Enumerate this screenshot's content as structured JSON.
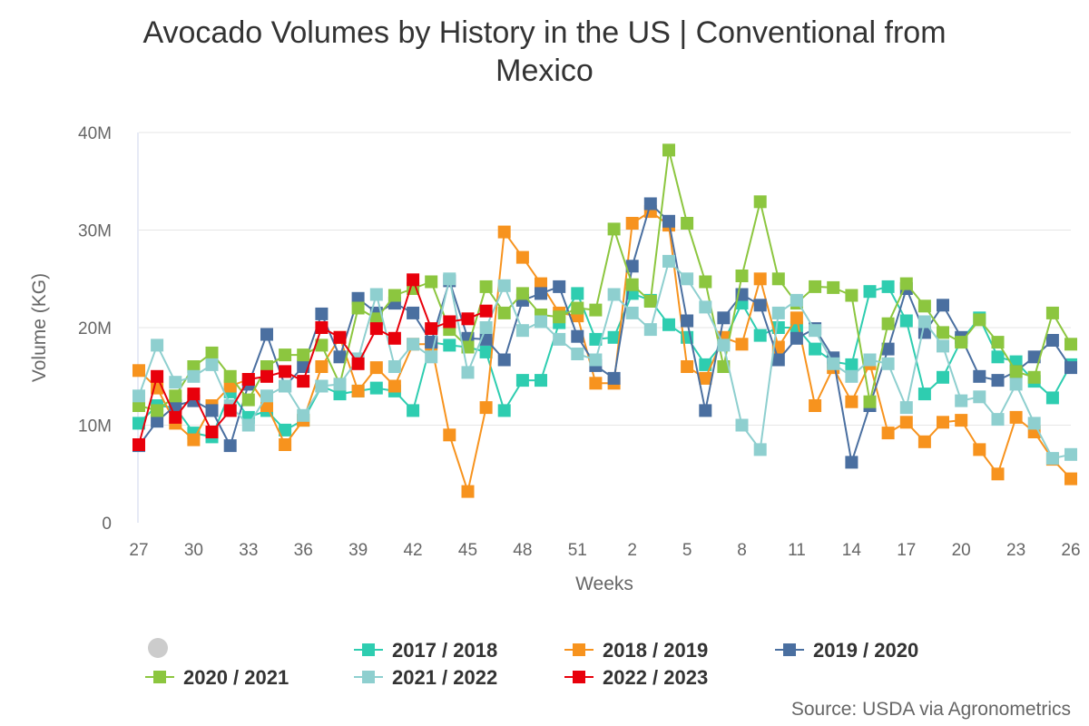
{
  "chart_data": {
    "type": "line",
    "title_line1": "Avocado Volumes by History in the US | Conventional from",
    "title_line2": "Mexico",
    "xlabel": "Weeks",
    "ylabel": "Volume (KG)",
    "ylim": [
      0,
      40000000
    ],
    "yticks": [
      {
        "value": 0,
        "label": "0"
      },
      {
        "value": 10000000,
        "label": "10M"
      },
      {
        "value": 20000000,
        "label": "20M"
      },
      {
        "value": 30000000,
        "label": "30M"
      },
      {
        "value": 40000000,
        "label": "40M"
      }
    ],
    "categories": [
      "27",
      "28",
      "29",
      "30",
      "31",
      "32",
      "33",
      "34",
      "35",
      "36",
      "37",
      "38",
      "39",
      "40",
      "41",
      "42",
      "43",
      "44",
      "45",
      "46",
      "47",
      "48",
      "49",
      "50",
      "51",
      "52",
      "1",
      "2",
      "3",
      "4",
      "5",
      "6",
      "7",
      "8",
      "9",
      "10",
      "11",
      "12",
      "13",
      "14",
      "15",
      "16",
      "17",
      "18",
      "19",
      "20",
      "21",
      "22",
      "23",
      "24",
      "25",
      "26"
    ],
    "xticks": [
      "27",
      "30",
      "33",
      "36",
      "39",
      "42",
      "45",
      "48",
      "51",
      "2",
      "5",
      "8",
      "11",
      "14",
      "17",
      "20",
      "23",
      "26"
    ],
    "series": [
      {
        "name": "2017 / 2018",
        "color": "#2ecdb0",
        "values": [
          10.2,
          12.0,
          11.8,
          9.2,
          8.8,
          13.4,
          10.8,
          11.5,
          9.5,
          10.5,
          14.0,
          13.2,
          13.5,
          13.8,
          13.5,
          11.5,
          18.5,
          18.2,
          18.0,
          17.5,
          11.5,
          14.6,
          14.6,
          20.5,
          23.5,
          18.8,
          19.0,
          23.5,
          22.8,
          20.3,
          19.0,
          16.2,
          18.5,
          22.5,
          19.2,
          20.0,
          20.0,
          17.8,
          16.5,
          16.2,
          23.7,
          24.2,
          20.7,
          13.2,
          14.9,
          18.7,
          21.0,
          17.0,
          16.5,
          14.5,
          12.8,
          16.2
        ]
      },
      {
        "name": "2018 / 2019",
        "color": "#f7931e",
        "values": [
          15.6,
          13.8,
          10.2,
          8.5,
          12.0,
          14.0,
          14.7,
          12.0,
          8.0,
          10.5,
          16.0,
          19.0,
          13.5,
          15.9,
          14.0,
          18.3,
          18.3,
          9.0,
          3.2,
          11.8,
          29.8,
          27.2,
          24.5,
          21.5,
          21.2,
          14.3,
          14.3,
          30.7,
          31.9,
          30.5,
          16.0,
          14.8,
          19.0,
          18.3,
          25.0,
          18.0,
          21.0,
          12.0,
          15.9,
          12.4,
          16.3,
          9.2,
          10.3,
          8.3,
          10.3,
          10.5,
          7.5,
          5.0,
          10.8,
          9.3,
          6.5,
          4.5
        ]
      },
      {
        "name": "2019 / 2020",
        "color": "#4a6fa0",
        "values": [
          7.9,
          10.4,
          12.0,
          12.5,
          11.5,
          7.9,
          14.2,
          19.3,
          14.0,
          16.0,
          21.4,
          17.0,
          23.0,
          21.5,
          22.5,
          21.5,
          18.5,
          24.8,
          18.9,
          18.8,
          16.7,
          22.8,
          23.5,
          24.2,
          19.1,
          16.1,
          14.8,
          26.3,
          32.7,
          30.9,
          20.7,
          11.5,
          21.0,
          23.4,
          22.3,
          16.7,
          18.9,
          19.9,
          16.9,
          6.2,
          12.0,
          17.8,
          24.0,
          19.5,
          22.3,
          19.0,
          15.0,
          14.6,
          15.5,
          17.0,
          18.7,
          15.9
        ]
      },
      {
        "name": "2020 / 2021",
        "color": "#8cc63f",
        "values": [
          12.0,
          11.5,
          13.0,
          16.0,
          17.4,
          15.0,
          12.6,
          16.0,
          17.2,
          17.2,
          18.2,
          14.2,
          22.0,
          20.9,
          23.3,
          24.0,
          24.7,
          19.8,
          18.0,
          24.2,
          21.5,
          23.5,
          21.3,
          21.1,
          22.0,
          21.8,
          30.1,
          24.4,
          22.7,
          38.2,
          30.7,
          24.7,
          16.0,
          25.3,
          32.9,
          25.0,
          22.5,
          24.2,
          24.1,
          23.3,
          12.4,
          20.4,
          24.5,
          22.2,
          19.5,
          18.5,
          20.8,
          18.5,
          15.5,
          14.9,
          21.5,
          18.3
        ]
      },
      {
        "name": "2021 / 2022",
        "color": "#8ecfcf",
        "values": [
          13.0,
          18.2,
          14.4,
          15.0,
          16.2,
          12.0,
          10.0,
          13.0,
          14.0,
          11.0,
          14.0,
          14.2,
          16.8,
          23.4,
          16.0,
          18.3,
          17.0,
          25.0,
          15.4,
          20.0,
          24.3,
          19.7,
          20.6,
          18.8,
          17.3,
          16.7,
          23.4,
          21.5,
          19.8,
          26.8,
          25.0,
          22.1,
          18.2,
          10.0,
          7.5,
          21.5,
          22.8,
          19.7,
          16.3,
          15.0,
          16.7,
          16.3,
          11.8,
          20.6,
          18.1,
          12.5,
          12.9,
          10.6,
          14.2,
          10.2,
          6.6,
          7.0
        ]
      },
      {
        "name": "2022 / 2023",
        "color": "#e8000b",
        "values": [
          8.0,
          15.0,
          10.8,
          13.2,
          9.3,
          11.5,
          14.7,
          15.0,
          15.5,
          14.5,
          20.0,
          19.0,
          16.3,
          19.9,
          18.9,
          24.9,
          19.9,
          20.6,
          20.9,
          21.7,
          null,
          null,
          null,
          null,
          null,
          null,
          null,
          null,
          null,
          null,
          null,
          null,
          null,
          null,
          null,
          null,
          null,
          null,
          null,
          null,
          null,
          null,
          null,
          null,
          null,
          null,
          null,
          null,
          null,
          null,
          null,
          null
        ]
      }
    ]
  },
  "source_text": "Source: USDA via Agronometrics"
}
